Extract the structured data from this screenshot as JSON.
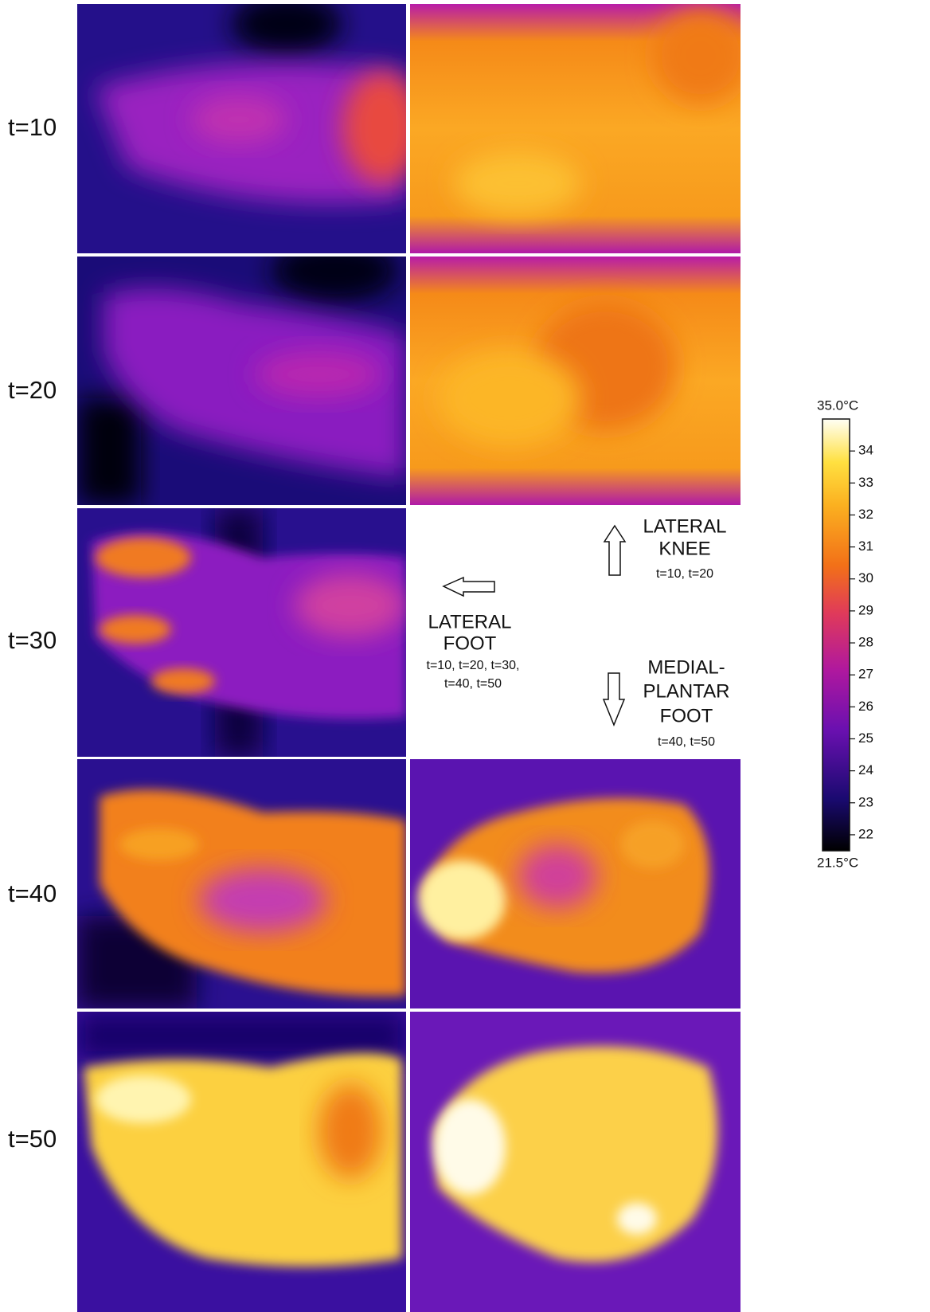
{
  "rows": [
    "t=10",
    "t=20",
    "t=30",
    "t=40",
    "t=50"
  ],
  "annotations": {
    "knee": {
      "lines": [
        "LATERAL",
        "KNEE"
      ],
      "note": "t=10, t=20"
    },
    "lateral_foot": {
      "lines": [
        "LATERAL",
        "FOOT"
      ],
      "notes": [
        "t=10, t=20, t=30,",
        "t=40, t=50"
      ]
    },
    "plantar_foot": {
      "lines": [
        "MEDIAL-",
        "PLANTAR",
        "FOOT"
      ],
      "note": "t=40, t=50"
    }
  },
  "colorbar": {
    "max_label": "35.0°C",
    "min_label": "21.5°C",
    "range": [
      21.5,
      35.0
    ],
    "ticks": [
      22,
      23,
      24,
      25,
      26,
      27,
      28,
      29,
      30,
      31,
      32,
      33,
      34
    ]
  }
}
